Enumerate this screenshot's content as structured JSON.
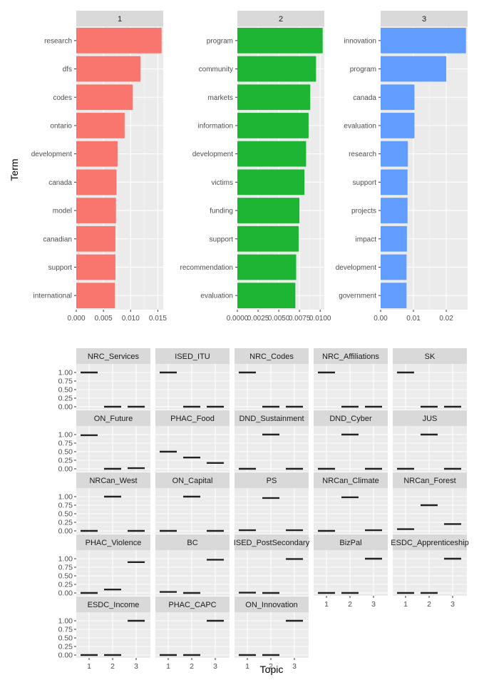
{
  "chart_data": [
    {
      "type": "bar",
      "orientation": "horizontal",
      "facet_by": "Topic",
      "ylabel": "Term",
      "xlabel": "",
      "grid": true,
      "colors": [
        "#F8766D",
        "#1FB534",
        "#619CFF"
      ],
      "facets": [
        {
          "label": "1",
          "xlim": [
            0,
            0.016
          ],
          "ticks": [
            "0.000",
            "0.005",
            "0.010",
            "0.015"
          ],
          "tick_values": [
            0,
            0.005,
            0.01,
            0.015
          ],
          "terms": [
            "research",
            "dfs",
            "codes",
            "ontario",
            "development",
            "canada",
            "model",
            "canadian",
            "support",
            "international"
          ],
          "values": [
            0.0157,
            0.0118,
            0.0104,
            0.0089,
            0.0076,
            0.0074,
            0.0073,
            0.0072,
            0.0072,
            0.0071
          ]
        },
        {
          "label": "2",
          "xlim": [
            0,
            0.0105
          ],
          "ticks": [
            "0.0000",
            "0.0025",
            "0.0050",
            "0.0075",
            "0.0100"
          ],
          "tick_values": [
            0,
            0.0025,
            0.005,
            0.0075,
            0.01
          ],
          "terms": [
            "program",
            "community",
            "markets",
            "information",
            "development",
            "victims",
            "funding",
            "support",
            "recommendation",
            "evaluation"
          ],
          "values": [
            0.0103,
            0.0095,
            0.0088,
            0.0086,
            0.0083,
            0.0081,
            0.0075,
            0.0074,
            0.0071,
            0.007
          ]
        },
        {
          "label": "3",
          "xlim": [
            0,
            0.0265
          ],
          "ticks": [
            "0.00",
            "0.01",
            "0.02"
          ],
          "tick_values": [
            0,
            0.01,
            0.02
          ],
          "terms": [
            "innovation",
            "program",
            "canada",
            "evaluation",
            "research",
            "support",
            "projects",
            "impact",
            "development",
            "government"
          ],
          "values": [
            0.026,
            0.02,
            0.0103,
            0.0103,
            0.0083,
            0.0082,
            0.0082,
            0.008,
            0.0079,
            0.0079
          ]
        }
      ]
    },
    {
      "type": "scatter",
      "mark": "crossbar",
      "xlabel": "Topic",
      "ylabel": "",
      "ylim": [
        0,
        1
      ],
      "x_ticks": [
        "1",
        "2",
        "3"
      ],
      "y_ticks": [
        "0.00",
        "0.25",
        "0.50",
        "0.75",
        "1.00"
      ],
      "grid": true,
      "facets": [
        {
          "label": "NRC_Services",
          "values": [
            1.0,
            0.0,
            0.0
          ]
        },
        {
          "label": "ISED_ITU",
          "values": [
            1.0,
            0.0,
            0.0
          ]
        },
        {
          "label": "NRC_Codes",
          "values": [
            1.0,
            0.0,
            0.0
          ]
        },
        {
          "label": "NRC_Affiliations",
          "values": [
            1.0,
            0.0,
            0.0
          ]
        },
        {
          "label": "SK",
          "values": [
            1.0,
            0.0,
            0.0
          ]
        },
        {
          "label": "ON_Future",
          "values": [
            0.98,
            0.0,
            0.02
          ]
        },
        {
          "label": "PHAC_Food",
          "values": [
            0.5,
            0.33,
            0.17
          ]
        },
        {
          "label": "DND_Sustainment",
          "values": [
            0.0,
            1.0,
            0.0
          ]
        },
        {
          "label": "DND_Cyber",
          "values": [
            0.0,
            1.0,
            0.0
          ]
        },
        {
          "label": "JUS",
          "values": [
            0.0,
            1.0,
            0.0
          ]
        },
        {
          "label": "NRCan_West",
          "values": [
            0.0,
            1.0,
            0.0
          ]
        },
        {
          "label": "ON_Capital",
          "values": [
            0.0,
            1.0,
            0.0
          ]
        },
        {
          "label": "PS",
          "values": [
            0.02,
            0.96,
            0.02
          ]
        },
        {
          "label": "NRCan_Climate",
          "values": [
            0.0,
            0.98,
            0.02
          ]
        },
        {
          "label": "NRCan_Forest",
          "values": [
            0.05,
            0.75,
            0.2
          ]
        },
        {
          "label": "PHAC_Violence",
          "values": [
            0.0,
            0.1,
            0.9
          ]
        },
        {
          "label": "BC",
          "values": [
            0.03,
            0.0,
            0.97
          ]
        },
        {
          "label": "ISED_PostSecondary",
          "values": [
            0.01,
            0.0,
            0.99
          ]
        },
        {
          "label": "BizPal",
          "values": [
            0.0,
            0.0,
            1.0
          ]
        },
        {
          "label": "ESDC_Apprenticeship",
          "values": [
            0.0,
            0.0,
            1.0
          ]
        },
        {
          "label": "ESDC_Income",
          "values": [
            0.0,
            0.0,
            1.0
          ]
        },
        {
          "label": "PHAC_CAPC",
          "values": [
            0.0,
            0.0,
            1.0
          ]
        },
        {
          "label": "ON_Innovation",
          "values": [
            0.0,
            0.0,
            1.0
          ]
        }
      ]
    }
  ]
}
